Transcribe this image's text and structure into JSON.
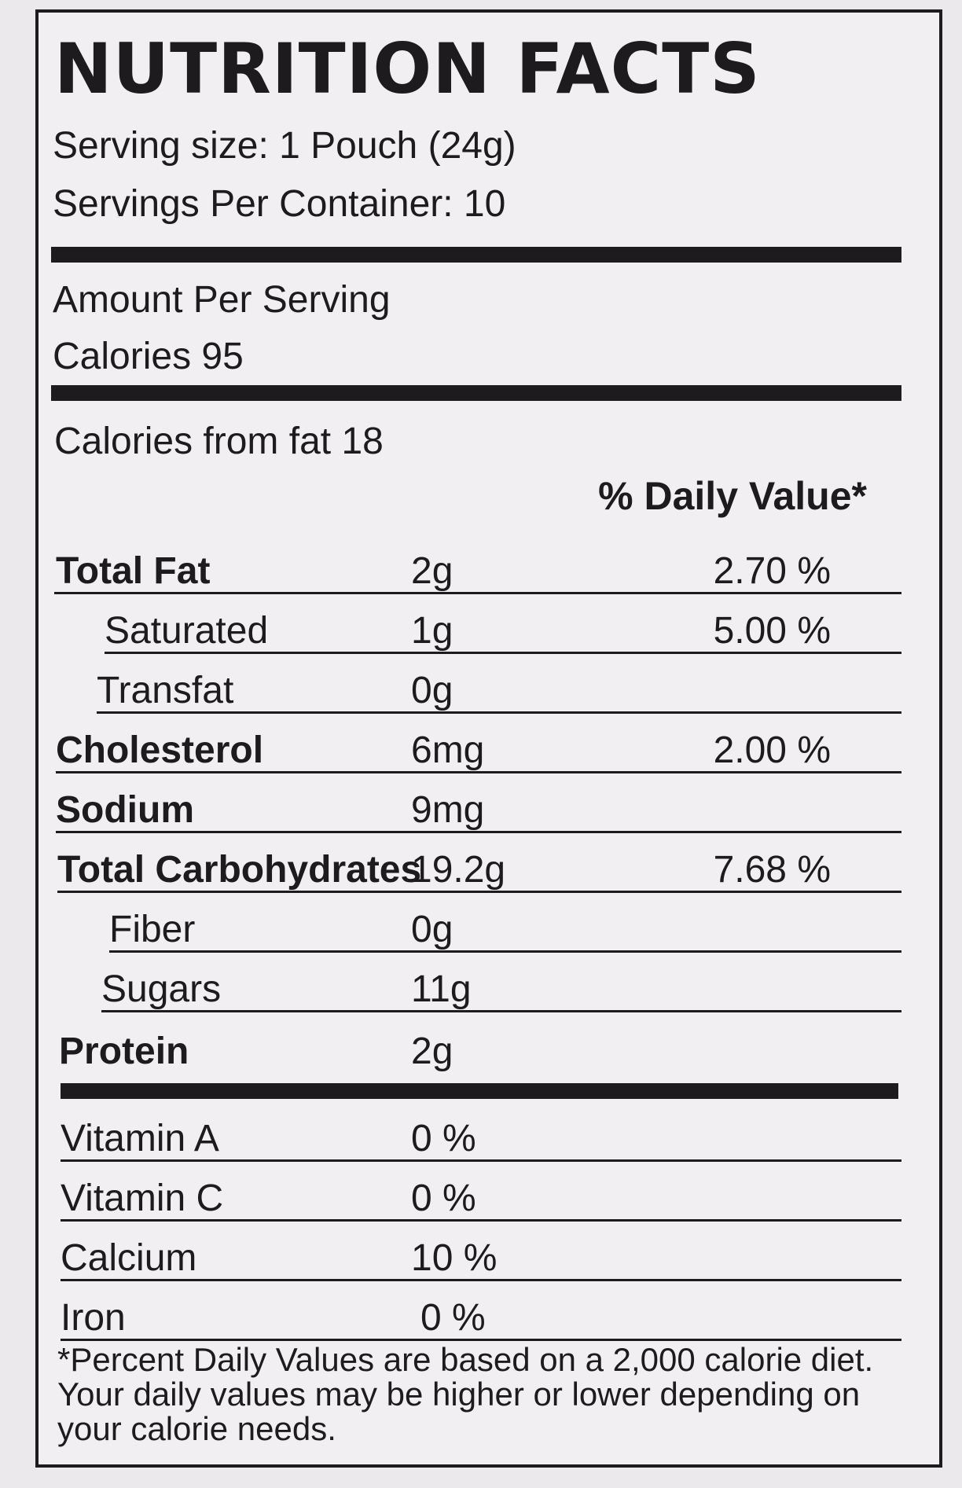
{
  "header": {
    "title": "NUTRITION FACTS",
    "serving_size": "Serving size: 1 Pouch (24g)",
    "servings_per_container": "Servings Per Container: 10"
  },
  "amount_section": {
    "amount_per_serving": "Amount Per Serving",
    "calories": "Calories  95",
    "calories_from_fat": "Calories from fat 18",
    "daily_value_header": "% Daily Value*"
  },
  "nutrients": [
    {
      "name": "Total Fat",
      "amount": "2g",
      "daily_value": "2.70 %"
    },
    {
      "name": "Saturated",
      "amount": "1g",
      "daily_value": "5.00 %"
    },
    {
      "name": "Transfat",
      "amount": "0g",
      "daily_value": ""
    },
    {
      "name": "Cholesterol",
      "amount": "6mg",
      "daily_value": "2.00 %"
    },
    {
      "name": "Sodium",
      "amount": "9mg",
      "daily_value": ""
    },
    {
      "name": "Total Carbohydrates",
      "amount": "19.2g",
      "daily_value": "7.68 %"
    },
    {
      "name": "Fiber",
      "amount": "0g",
      "daily_value": ""
    },
    {
      "name": "Sugars",
      "amount": "11g",
      "daily_value": ""
    },
    {
      "name": "Protein",
      "amount": "2g",
      "daily_value": ""
    }
  ],
  "vitamins": [
    {
      "name": "Vitamin A",
      "value": "0 %"
    },
    {
      "name": "Vitamin C",
      "value": "0 %"
    },
    {
      "name": "Calcium",
      "value": "10 %"
    },
    {
      "name": "Iron",
      "value": "0 %"
    }
  ],
  "footnote": "*Percent Daily Values are based on a 2,000 calorie diet. Your daily values may be higher or lower depending on your calorie needs."
}
